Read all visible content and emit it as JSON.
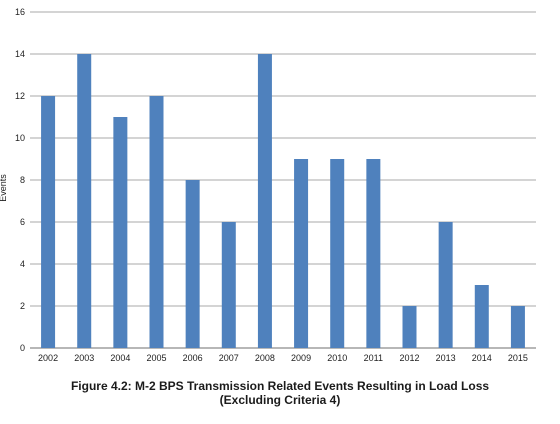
{
  "chart_data": {
    "type": "bar",
    "categories": [
      "2002",
      "2003",
      "2004",
      "2005",
      "2006",
      "2007",
      "2008",
      "2009",
      "2010",
      "2011",
      "2012",
      "2013",
      "2014",
      "2015"
    ],
    "values": [
      12,
      14,
      11,
      12,
      8,
      6,
      14,
      9,
      9,
      9,
      2,
      6,
      3,
      2
    ],
    "ylabel": "Events",
    "xlabel": "",
    "ylim": [
      0,
      16
    ],
    "yticks": [
      0,
      2,
      4,
      6,
      8,
      10,
      12,
      14,
      16
    ],
    "grid": true,
    "bar_color": "#4f81bd",
    "grid_color": "#8c8c8c"
  },
  "caption": {
    "line1": "Figure 4.2: M-2 BPS Transmission Related Events Resulting in Load Loss",
    "line2": "(Excluding Criteria 4)"
  }
}
